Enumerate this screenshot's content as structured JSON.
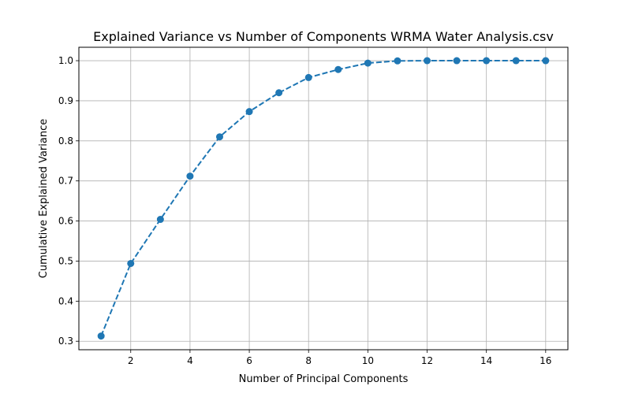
{
  "chart_data": {
    "type": "line",
    "title": "Explained Variance vs Number of Components WRMA Water Analysis.csv",
    "xlabel": "Number of Principal Components",
    "ylabel": "Cumulative Explained Variance",
    "xlim": [
      0.25,
      16.75
    ],
    "ylim": [
      0.2788,
      1.0335
    ],
    "xticks": [
      2,
      4,
      6,
      8,
      10,
      12,
      14,
      16
    ],
    "yticks": [
      0.3,
      0.4,
      0.5,
      0.6,
      0.7,
      0.8,
      0.9,
      1.0
    ],
    "ytick_labels": [
      "0.3",
      "0.4",
      "0.5",
      "0.6",
      "0.7",
      "0.8",
      "0.9",
      "1.0"
    ],
    "grid": true,
    "line_style": "dashed",
    "marker": "circle",
    "color": "#1f77b4",
    "series": [
      {
        "x": [
          1,
          2,
          3,
          4,
          5,
          6,
          7,
          8,
          9,
          10,
          11,
          12,
          13,
          14,
          15,
          16
        ],
        "values": [
          0.313,
          0.494,
          0.604,
          0.712,
          0.81,
          0.873,
          0.92,
          0.958,
          0.978,
          0.994,
          0.9995,
          1.0,
          1.0,
          1.0,
          1.0,
          1.0
        ]
      }
    ]
  }
}
